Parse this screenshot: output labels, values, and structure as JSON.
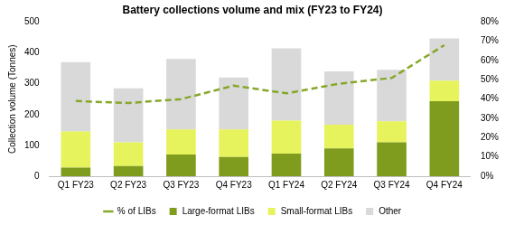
{
  "chart_data": {
    "type": "bar",
    "title": "Battery collections volume and mix (FY23 to FY24)",
    "y_label": "Collection volume (Tonnes)",
    "categories": [
      "Q1 FY23",
      "Q2 FY23",
      "Q3 FY23",
      "Q4 FY23",
      "Q1 FY24",
      "Q2 FY24",
      "Q3 FY24",
      "Q4 FY24"
    ],
    "stacked": true,
    "grid": false,
    "legend": "bottom",
    "ylim": [
      0,
      500
    ],
    "yticks": [
      0,
      100,
      200,
      300,
      400,
      500
    ],
    "y2lim": [
      0,
      80
    ],
    "y2ticks": [
      {
        "value": 0,
        "label": "0%"
      },
      {
        "value": 10,
        "label": "10%"
      },
      {
        "value": 20,
        "label": "20%"
      },
      {
        "value": 30,
        "label": "30%"
      },
      {
        "value": 40,
        "label": "40%"
      },
      {
        "value": 50,
        "label": "50%"
      },
      {
        "value": 60,
        "label": "60%"
      },
      {
        "value": 70,
        "label": "70%"
      },
      {
        "value": 80,
        "label": "80%"
      }
    ],
    "series": [
      {
        "name": "Large-format LIBs",
        "type": "bar",
        "color": "#7f9c1f",
        "values": [
          28,
          33,
          70,
          62,
          73,
          90,
          110,
          243
        ]
      },
      {
        "name": "Small-format LIBs",
        "type": "bar",
        "color": "#e6f35c",
        "values": [
          117,
          77,
          82,
          90,
          107,
          77,
          68,
          67
        ]
      },
      {
        "name": "Other",
        "type": "bar",
        "color": "#d9d9d9",
        "values": [
          225,
          175,
          228,
          168,
          235,
          173,
          167,
          137
        ]
      },
      {
        "name": "% of LIBs",
        "type": "line",
        "axis": "y2",
        "color": "#86a82a",
        "line_style": "dashed",
        "values": [
          39,
          38,
          40,
          47,
          43,
          48,
          51,
          68
        ]
      }
    ]
  }
}
